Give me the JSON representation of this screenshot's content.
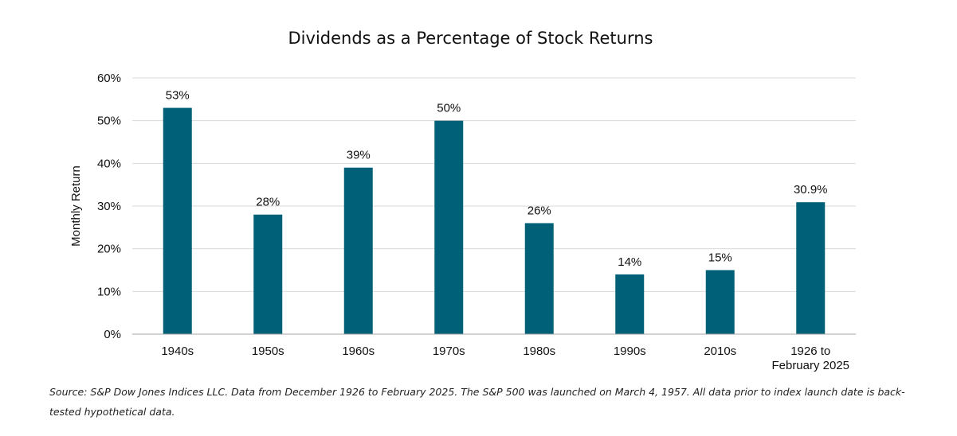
{
  "chart_data": {
    "type": "bar",
    "title": "Dividends as a Percentage of Stock Returns",
    "xlabel": "",
    "ylabel": "Monthly Return",
    "categories": [
      [
        "1940s"
      ],
      [
        "1950s"
      ],
      [
        "1960s"
      ],
      [
        "1970s"
      ],
      [
        "1980s"
      ],
      [
        "1990s"
      ],
      [
        "2010s"
      ],
      [
        "1926 to",
        "February 2025"
      ]
    ],
    "values": [
      53,
      28,
      39,
      50,
      26,
      14,
      15,
      30.9
    ],
    "data_labels": [
      "53%",
      "28%",
      "39%",
      "50%",
      "26%",
      "14%",
      "15%",
      "30.9%"
    ],
    "ylim": [
      0,
      60
    ],
    "yticks": [
      0,
      10,
      20,
      30,
      40,
      50,
      60
    ],
    "ytick_labels": [
      "0%",
      "10%",
      "20%",
      "30%",
      "40%",
      "50%",
      "60%"
    ],
    "grid": true,
    "legend": "none",
    "colors": {
      "bar": "#006078",
      "grid": "#d9d9d9",
      "axis": "#a6a6a6",
      "text": "#111111"
    }
  },
  "source_note": "Source: S&P Dow Jones Indices LLC.  Data from December 1926 to February 2025.  The S&P 500 was launched on March 4, 1957.  All data prior to index launch date is back-tested hypothetical data."
}
